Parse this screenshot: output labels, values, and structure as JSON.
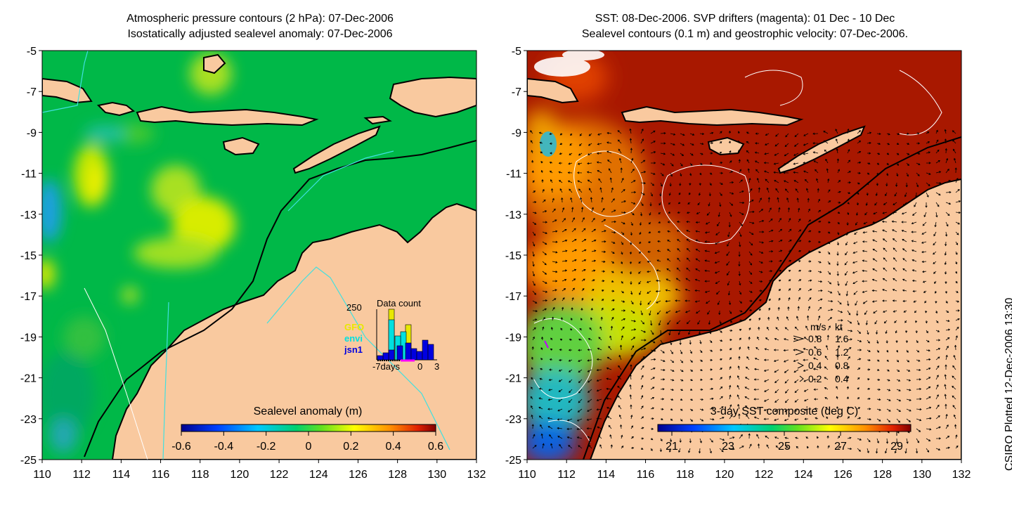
{
  "left_panel": {
    "title_line1": "Atmospheric pressure contours (2 hPa): 07-Dec-2006",
    "title_line2": "Isostatically adjusted sealevel anomaly: 07-Dec-2006",
    "colorbar": {
      "label": "Sealevel anomaly (m)",
      "ticks": [
        "-0.6",
        "-0.4",
        "-0.2",
        "0",
        "0.2",
        "0.4",
        "0.6"
      ],
      "range": [
        -0.6,
        0.6
      ]
    },
    "inset": {
      "title": "Data count",
      "ymax_label": "250",
      "x_labels": [
        "-7days",
        "0",
        "3"
      ],
      "satellites": [
        {
          "name": "GFO",
          "color": "#e8e800"
        },
        {
          "name": "envi",
          "color": "#00e0e0"
        },
        {
          "name": "jsn1",
          "color": "#0000e0"
        }
      ]
    }
  },
  "right_panel": {
    "title_line1": "SST: 08-Dec-2006. SVP drifters (magenta): 01 Dec - 10 Dec",
    "title_line2": "Sealevel contours (0.1 m) and geostrophic velocity: 07-Dec-2006.",
    "colorbar": {
      "label": "3-day SST composite (deg C)",
      "ticks": [
        "21",
        "23",
        "25",
        "27",
        "29"
      ],
      "range": [
        20.5,
        29.5
      ]
    },
    "speed_legend": {
      "header_ms": "m/s",
      "header_kt": "kt",
      "rows": [
        {
          "ms": "0.8",
          "kt": "1.6"
        },
        {
          "ms": "0.6",
          "kt": "1.2"
        },
        {
          "ms": "0.4",
          "kt": "0.8"
        },
        {
          "ms": "0.2",
          "kt": "0.4"
        }
      ]
    }
  },
  "axes": {
    "x_ticks": [
      "110",
      "112",
      "114",
      "116",
      "118",
      "120",
      "122",
      "124",
      "126",
      "128",
      "130",
      "132"
    ],
    "y_ticks": [
      "-5",
      "-7",
      "-9",
      "-11",
      "-13",
      "-15",
      "-17",
      "-19",
      "-21",
      "-23",
      "-25"
    ],
    "lon_range": [
      110,
      132
    ],
    "lat_range": [
      -25,
      -5
    ]
  },
  "credit": "CSIRO Plotted 12-Dec-2006 13:30",
  "colors": {
    "land": "#f9c99f",
    "ocean_sla": "#00b848",
    "sst_warm": "#a81800"
  }
}
